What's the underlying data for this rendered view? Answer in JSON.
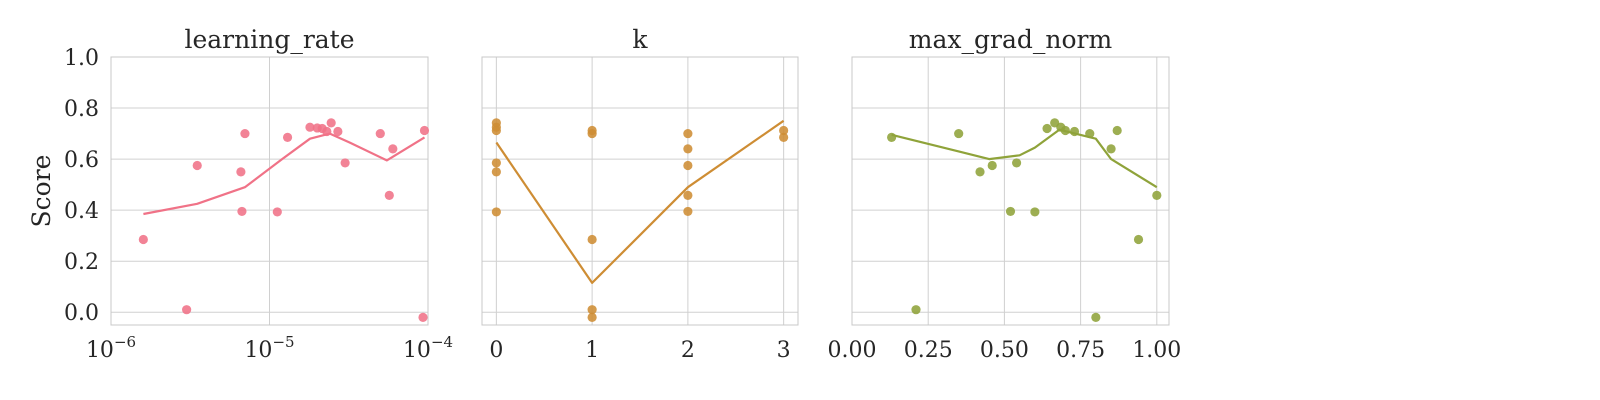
{
  "chart_data": [
    {
      "type": "scatter",
      "title": "learning_rate",
      "xlabel": "",
      "ylabel": "Score",
      "xscale": "log",
      "xlim": [
        1e-06,
        0.0001
      ],
      "ylim": [
        -0.05,
        1.0
      ],
      "color": "#f07287",
      "xticks": [
        {
          "base": "10",
          "exp": "−6",
          "value": 1e-06
        },
        {
          "base": "10",
          "exp": "−5",
          "value": 1e-05
        },
        {
          "base": "10",
          "exp": "−4",
          "value": 0.0001
        }
      ],
      "yticks": [
        {
          "label": "0.0",
          "value": 0.0
        },
        {
          "label": "0.2",
          "value": 0.2
        },
        {
          "label": "0.4",
          "value": 0.4
        },
        {
          "label": "0.6",
          "value": 0.6
        },
        {
          "label": "0.8",
          "value": 0.8
        },
        {
          "label": "1.0",
          "value": 1.0
        }
      ],
      "points": [
        {
          "x": 1.6e-06,
          "y": 0.285
        },
        {
          "x": 3e-06,
          "y": 0.01
        },
        {
          "x": 3.5e-06,
          "y": 0.575
        },
        {
          "x": 6.6e-06,
          "y": 0.55
        },
        {
          "x": 6.7e-06,
          "y": 0.395
        },
        {
          "x": 7e-06,
          "y": 0.7
        },
        {
          "x": 1.12e-05,
          "y": 0.393
        },
        {
          "x": 1.3e-05,
          "y": 0.685
        },
        {
          "x": 1.8e-05,
          "y": 0.725
        },
        {
          "x": 2e-05,
          "y": 0.722
        },
        {
          "x": 2.15e-05,
          "y": 0.72
        },
        {
          "x": 2.3e-05,
          "y": 0.708
        },
        {
          "x": 2.45e-05,
          "y": 0.742
        },
        {
          "x": 2.7e-05,
          "y": 0.708
        },
        {
          "x": 3e-05,
          "y": 0.585
        },
        {
          "x": 5e-05,
          "y": 0.7
        },
        {
          "x": 5.7e-05,
          "y": 0.458
        },
        {
          "x": 6e-05,
          "y": 0.64
        },
        {
          "x": 9.3e-05,
          "y": -0.02
        },
        {
          "x": 9.5e-05,
          "y": 0.712
        }
      ],
      "trend": [
        {
          "x": 1.6e-06,
          "y": 0.385
        },
        {
          "x": 3.5e-06,
          "y": 0.425
        },
        {
          "x": 7e-06,
          "y": 0.49
        },
        {
          "x": 1.2e-05,
          "y": 0.6
        },
        {
          "x": 1.8e-05,
          "y": 0.68
        },
        {
          "x": 2.4e-05,
          "y": 0.7
        },
        {
          "x": 3.2e-05,
          "y": 0.665
        },
        {
          "x": 5.5e-05,
          "y": 0.595
        },
        {
          "x": 9.5e-05,
          "y": 0.685
        }
      ]
    },
    {
      "type": "scatter",
      "title": "k",
      "xlabel": "",
      "xscale": "linear",
      "xlim": [
        -0.15,
        3.15
      ],
      "ylim": [
        -0.05,
        1.0
      ],
      "color": "#ce8d34",
      "xticks": [
        {
          "label": "0",
          "value": 0
        },
        {
          "label": "1",
          "value": 1
        },
        {
          "label": "2",
          "value": 2
        },
        {
          "label": "3",
          "value": 3
        }
      ],
      "yticks": [
        {
          "value": 0.0
        },
        {
          "value": 0.2
        },
        {
          "value": 0.4
        },
        {
          "value": 0.6
        },
        {
          "value": 0.8
        },
        {
          "value": 1.0
        }
      ],
      "points": [
        {
          "x": 0,
          "y": 0.742
        },
        {
          "x": 0,
          "y": 0.725
        },
        {
          "x": 0,
          "y": 0.712
        },
        {
          "x": 0,
          "y": 0.585
        },
        {
          "x": 0,
          "y": 0.55
        },
        {
          "x": 0,
          "y": 0.393
        },
        {
          "x": 1,
          "y": 0.712
        },
        {
          "x": 1,
          "y": 0.7
        },
        {
          "x": 1,
          "y": 0.285
        },
        {
          "x": 1,
          "y": 0.01
        },
        {
          "x": 1,
          "y": -0.02
        },
        {
          "x": 2,
          "y": 0.7
        },
        {
          "x": 2,
          "y": 0.64
        },
        {
          "x": 2,
          "y": 0.575
        },
        {
          "x": 2,
          "y": 0.458
        },
        {
          "x": 2,
          "y": 0.395
        },
        {
          "x": 3,
          "y": 0.712
        },
        {
          "x": 3,
          "y": 0.685
        }
      ],
      "trend": [
        {
          "x": 0,
          "y": 0.665
        },
        {
          "x": 1,
          "y": 0.115
        },
        {
          "x": 2,
          "y": 0.49
        },
        {
          "x": 3,
          "y": 0.75
        }
      ]
    },
    {
      "type": "scatter",
      "title": "max_grad_norm",
      "xlabel": "",
      "xscale": "linear",
      "xlim": [
        0.0,
        1.04
      ],
      "ylim": [
        -0.05,
        1.0
      ],
      "color": "#8fa33a",
      "xticks": [
        {
          "label": "0.00",
          "value": 0.0
        },
        {
          "label": "0.25",
          "value": 0.25
        },
        {
          "label": "0.50",
          "value": 0.5
        },
        {
          "label": "0.75",
          "value": 0.75
        },
        {
          "label": "1.00",
          "value": 1.0
        }
      ],
      "yticks": [
        {
          "value": 0.0
        },
        {
          "value": 0.2
        },
        {
          "value": 0.4
        },
        {
          "value": 0.6
        },
        {
          "value": 0.8
        },
        {
          "value": 1.0
        }
      ],
      "points": [
        {
          "x": 0.13,
          "y": 0.685
        },
        {
          "x": 0.21,
          "y": 0.01
        },
        {
          "x": 0.35,
          "y": 0.7
        },
        {
          "x": 0.42,
          "y": 0.55
        },
        {
          "x": 0.46,
          "y": 0.575
        },
        {
          "x": 0.52,
          "y": 0.395
        },
        {
          "x": 0.54,
          "y": 0.585
        },
        {
          "x": 0.6,
          "y": 0.393
        },
        {
          "x": 0.64,
          "y": 0.72
        },
        {
          "x": 0.665,
          "y": 0.742
        },
        {
          "x": 0.685,
          "y": 0.725
        },
        {
          "x": 0.7,
          "y": 0.712
        },
        {
          "x": 0.73,
          "y": 0.708
        },
        {
          "x": 0.78,
          "y": 0.7
        },
        {
          "x": 0.8,
          "y": -0.02
        },
        {
          "x": 0.85,
          "y": 0.64
        },
        {
          "x": 0.87,
          "y": 0.712
        },
        {
          "x": 0.94,
          "y": 0.285
        },
        {
          "x": 1.0,
          "y": 0.458
        }
      ],
      "trend": [
        {
          "x": 0.13,
          "y": 0.695
        },
        {
          "x": 0.35,
          "y": 0.63
        },
        {
          "x": 0.45,
          "y": 0.6
        },
        {
          "x": 0.55,
          "y": 0.615
        },
        {
          "x": 0.6,
          "y": 0.645
        },
        {
          "x": 0.68,
          "y": 0.715
        },
        {
          "x": 0.8,
          "y": 0.68
        },
        {
          "x": 0.85,
          "y": 0.6
        },
        {
          "x": 1.0,
          "y": 0.49
        }
      ]
    }
  ]
}
